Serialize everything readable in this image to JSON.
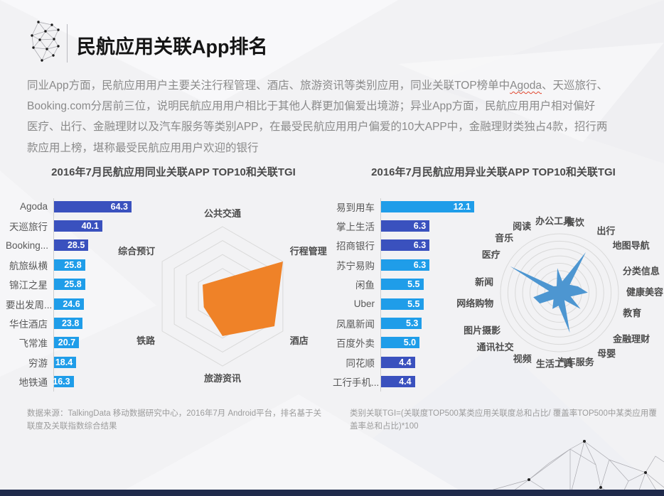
{
  "header": {
    "title": "民航应用关联App排名"
  },
  "intro": {
    "line1_pre": "同业App方面，民航应用用户主要关注行程管理、酒店、旅游资讯等类别应用，同业关联TOP榜单中",
    "line1_underlined": "Agoda",
    "line1_post": "、天巡旅行、",
    "line2": "Booking.com分居前三位，说明民航应用用户相比于其他人群更加偏爱出境游；异业App方面，民航应用用户相对偏好",
    "line3": "医疗、出行、金融理财以及汽车服务等类别APP，在最受民航应用用户偏爱的10大APP中，金融理财类独占4款，招行两",
    "line4": "款应用上榜，堪称最受民航应用用户欢迎的银行"
  },
  "footnotes": {
    "left_line1": "数据来源：TalkingData 移动数据研究中心，2016年7月 Android平台，排名基于关",
    "left_line2": "联度及关联指数综合结果",
    "right_line1": "类别关联TGI=(关联度TOP500某类应用关联度总和占比/ 覆盖率TOP500中某类应用覆",
    "right_line2": "盖率总和占比)*100"
  },
  "colors": {
    "bar_dark": "#3A51BE",
    "bar_light": "#1F9DE9",
    "radar_left_fill": "#EF8228",
    "radar_right_fill": "#4D96D1",
    "ring_stroke": "#D9D9D9",
    "footer_bar": "#1F2A4B",
    "spellcheck_underline": "#E0462E"
  },
  "chart_data": [
    {
      "type": "bar",
      "orientation": "horizontal",
      "title": "2016年7月民航应用同业关联APP TOP10和关联TGI",
      "categories": [
        "Agoda",
        "天巡旅行",
        "Booking...",
        "航旅纵横",
        "锦江之星",
        "要出发周...",
        "华住酒店",
        "飞常准",
        "穷游",
        "地铁通"
      ],
      "values": [
        64.3,
        40.1,
        28.5,
        25.8,
        25.8,
        24.6,
        23.8,
        20.7,
        18.4,
        16.3
      ],
      "bar_colors": [
        "dark",
        "dark",
        "dark",
        "light",
        "light",
        "light",
        "light",
        "light",
        "light",
        "light"
      ],
      "value_labels_inside": true,
      "xlim": [
        0,
        64.3
      ],
      "grid": false
    },
    {
      "type": "radar",
      "shape": "hexagon-web",
      "position": "left",
      "rings": 5,
      "scale": "relative_0_1",
      "categories": [
        "公共交通",
        "行程管理",
        "酒店",
        "旅游资讯",
        "铁路",
        "综合预订"
      ],
      "values": [
        0.25,
        1.0,
        0.86,
        0.57,
        0.31,
        0.33
      ],
      "fill": "#EF8228"
    },
    {
      "type": "bar",
      "orientation": "horizontal",
      "title": "2016年7月民航应用异业关联APP TOP10和关联TGI",
      "categories": [
        "易到用车",
        "掌上生活",
        "招商银行",
        "苏宁易购",
        "闲鱼",
        "Uber",
        "凤凰新闻",
        "百度外卖",
        "同花顺",
        "工行手机..."
      ],
      "values": [
        12.1,
        6.3,
        6.3,
        6.3,
        5.5,
        5.5,
        5.3,
        5.0,
        4.4,
        4.4
      ],
      "bar_colors": [
        "light",
        "dark",
        "dark",
        "light",
        "light",
        "light",
        "light",
        "light",
        "dark",
        "dark"
      ],
      "value_labels_inside": true,
      "xlim": [
        0,
        12.1
      ],
      "grid": false
    },
    {
      "type": "radar",
      "shape": "circle-web",
      "position": "right",
      "rings": 8,
      "scale": "relative_0_1",
      "categories": [
        "办公工具",
        "餐饮",
        "出行",
        "地图导航",
        "分类信息",
        "健康美容",
        "教育",
        "金融理财",
        "母婴",
        "汽车服务",
        "生活工具",
        "视频",
        "通讯社交",
        "图片摄影",
        "网络购物",
        "新闻",
        "医疗",
        "音乐",
        "阅读"
      ],
      "values": [
        0.42,
        0.2,
        0.82,
        0.22,
        0.33,
        0.48,
        0.2,
        0.45,
        0.15,
        0.7,
        0.22,
        0.3,
        0.15,
        0.38,
        0.45,
        0.18,
        0.95,
        0.15,
        0.12
      ],
      "fill": "#4D96D1"
    }
  ]
}
